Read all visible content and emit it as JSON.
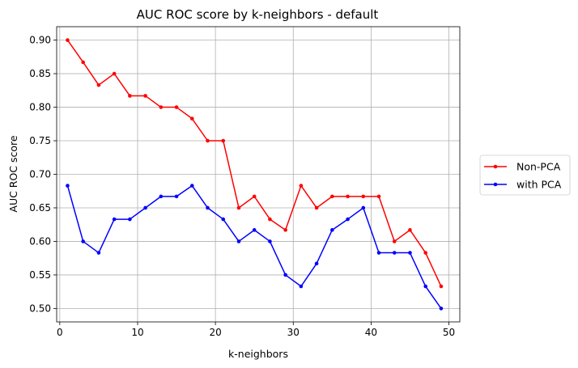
{
  "chart_data": {
    "type": "line",
    "title": "AUC ROC score by k-neighbors - default",
    "xlabel": "k-neighbors",
    "ylabel": "AUC ROC score",
    "xlim": [
      -0.4,
      51.4
    ],
    "ylim": [
      0.48,
      0.92
    ],
    "xticks": [
      0,
      10,
      20,
      30,
      40,
      50
    ],
    "yticks": [
      0.5,
      0.55,
      0.6,
      0.65,
      0.7,
      0.75,
      0.8,
      0.85,
      0.9
    ],
    "grid": true,
    "legend_position": "outside-right",
    "x": [
      1,
      3,
      5,
      7,
      9,
      11,
      13,
      15,
      17,
      19,
      21,
      23,
      25,
      27,
      29,
      31,
      33,
      35,
      37,
      39,
      41,
      43,
      45,
      47,
      49
    ],
    "series": [
      {
        "name": "Non-PCA",
        "color": "#ff0000",
        "values": [
          0.9,
          0.867,
          0.833,
          0.85,
          0.817,
          0.817,
          0.8,
          0.8,
          0.783,
          0.75,
          0.75,
          0.65,
          0.667,
          0.633,
          0.617,
          0.683,
          0.65,
          0.667,
          0.667,
          0.667,
          0.667,
          0.6,
          0.617,
          0.583,
          0.533
        ]
      },
      {
        "name": "with PCA",
        "color": "#0000ff",
        "values": [
          0.683,
          0.6,
          0.583,
          0.633,
          0.633,
          0.65,
          0.667,
          0.667,
          0.683,
          0.65,
          0.633,
          0.6,
          0.617,
          0.6,
          0.55,
          0.533,
          0.567,
          0.617,
          0.633,
          0.65,
          0.583,
          0.583,
          0.583,
          0.533,
          0.5
        ]
      }
    ]
  }
}
